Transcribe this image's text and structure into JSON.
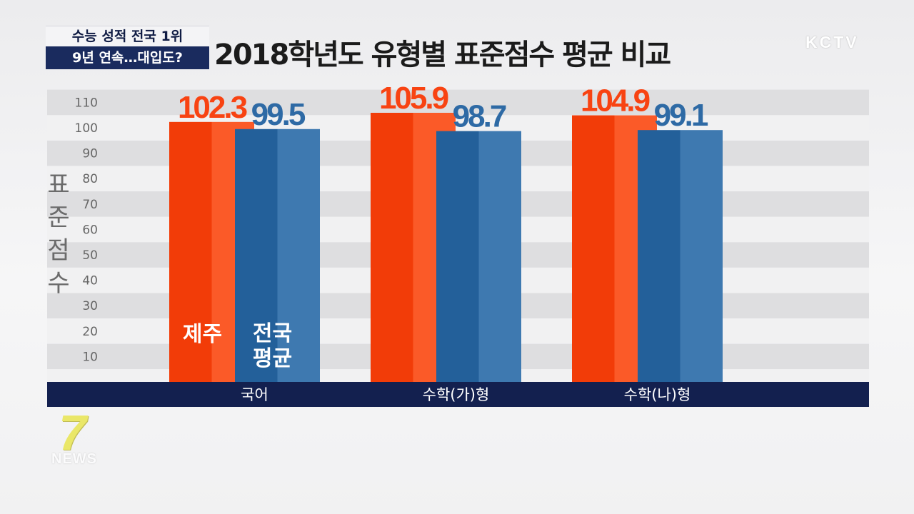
{
  "headline": {
    "line1": "수능 성적 전국 1위",
    "line2": "9년 연속…대입도?"
  },
  "title": "2018학년도 유형별 표준점수 평균 비교",
  "logo": "KCTV",
  "watermark": {
    "number": "7",
    "text": "NEWS"
  },
  "chart_data": {
    "type": "bar",
    "categories": [
      "국어",
      "수학(가)형",
      "수학(나)형"
    ],
    "series": [
      {
        "name": "제주",
        "values": [
          102.3,
          105.9,
          104.9
        ],
        "color": "#f84312"
      },
      {
        "name": "전국 평균",
        "values": [
          99.5,
          98.7,
          99.1
        ],
        "color": "#2e6aa5"
      }
    ],
    "series_labels": [
      [
        "제주"
      ],
      [
        "전국",
        "평균"
      ]
    ],
    "ylabel": "표준점수",
    "yticks": [
      10,
      20,
      30,
      40,
      50,
      60,
      70,
      80,
      90,
      100,
      110
    ],
    "ylim": [
      0,
      110
    ],
    "grid": "horizontal bands",
    "legend": "inside-first-group"
  }
}
